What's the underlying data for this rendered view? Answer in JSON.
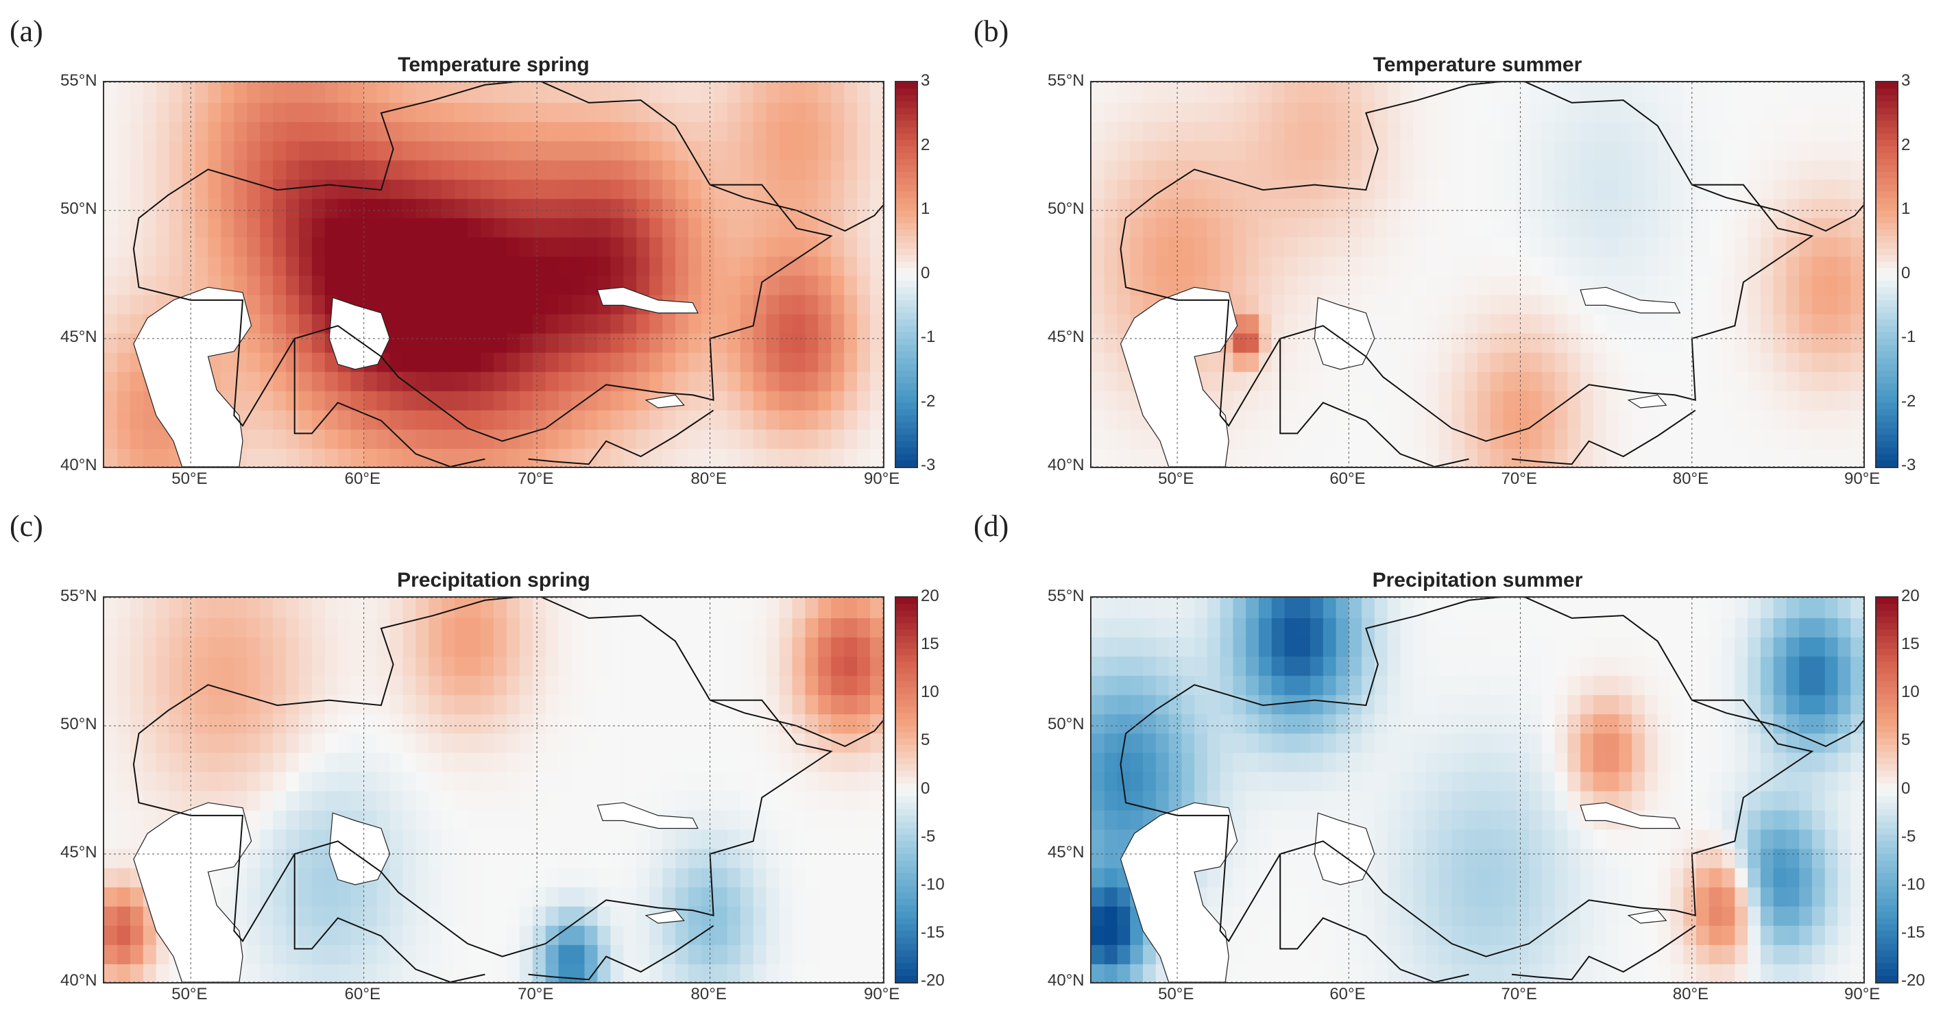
{
  "figure": {
    "colors": {
      "red_dark": "#8e0c1f",
      "red_mid": "#d6604d",
      "red_light": "#f4a582",
      "white": "#f7f7f7",
      "blue_light": "#92c5de",
      "blue_mid": "#4393c3",
      "blue_dark": "#084a91"
    }
  },
  "chart_data": [
    {
      "type": "heatmap",
      "panel_label": "(a)",
      "title": "Temperature spring",
      "variable": "temperature",
      "season": "spring",
      "x_ticks": [
        "50°E",
        "60°E",
        "70°E",
        "80°E",
        "90°E"
      ],
      "y_ticks": [
        "55°N",
        "50°N",
        "45°N",
        "40°N"
      ],
      "xlim": [
        45,
        90
      ],
      "ylim": [
        40,
        55
      ],
      "colorbar": {
        "min": -3,
        "max": 3,
        "ticks": [
          "3",
          "2",
          "1",
          "0",
          "-1",
          "-2",
          "-3"
        ]
      },
      "pattern": [
        {
          "lon": 67,
          "lat": 46.5,
          "value": 2.8,
          "spread": 9
        },
        {
          "lon": 60,
          "lat": 47,
          "value": 2.4,
          "spread": 8
        },
        {
          "lon": 75,
          "lat": 48,
          "value": 2.2,
          "spread": 7
        },
        {
          "lon": 55,
          "lat": 52,
          "value": 1.5,
          "spread": 8
        },
        {
          "lon": 85,
          "lat": 45,
          "value": 2.0,
          "spread": 5
        },
        {
          "lon": 48,
          "lat": 42,
          "value": 1.2,
          "spread": 6
        },
        {
          "lon": 85,
          "lat": 53,
          "value": 1.0,
          "spread": 6
        }
      ]
    },
    {
      "type": "heatmap",
      "panel_label": "(b)",
      "title": "Temperature summer",
      "variable": "temperature",
      "season": "summer",
      "x_ticks": [
        "50°E",
        "60°E",
        "70°E",
        "80°E",
        "90°E"
      ],
      "y_ticks": [
        "55°N",
        "50°N",
        "45°N",
        "40°N"
      ],
      "xlim": [
        45,
        90
      ],
      "ylim": [
        40,
        55
      ],
      "colorbar": {
        "min": -3,
        "max": 3,
        "ticks": [
          "3",
          "2",
          "1",
          "0",
          "-1",
          "-2",
          "-3"
        ]
      },
      "pattern": [
        {
          "lon": 50,
          "lat": 48,
          "value": 1.0,
          "spread": 7
        },
        {
          "lon": 70,
          "lat": 42,
          "value": 1.0,
          "spread": 5
        },
        {
          "lon": 54,
          "lat": 45,
          "value": 2.0,
          "spread": 1.2
        },
        {
          "lon": 75,
          "lat": 51,
          "value": -0.3,
          "spread": 6
        },
        {
          "lon": 88,
          "lat": 47,
          "value": 1.0,
          "spread": 5
        },
        {
          "lon": 58,
          "lat": 53,
          "value": 0.7,
          "spread": 6
        }
      ]
    },
    {
      "type": "heatmap",
      "panel_label": "(c)",
      "title": "Precipitation spring",
      "variable": "precipitation",
      "season": "spring",
      "x_ticks": [
        "50°E",
        "60°E",
        "70°E",
        "80°E",
        "90°E"
      ],
      "y_ticks": [
        "55°N",
        "50°N",
        "45°N",
        "40°N"
      ],
      "xlim": [
        45,
        90
      ],
      "ylim": [
        40,
        55
      ],
      "colorbar": {
        "min": -20,
        "max": 20,
        "ticks": [
          "20",
          "15",
          "10",
          "5",
          "0",
          "-5",
          "-10",
          "-15",
          "-20"
        ]
      },
      "pattern": [
        {
          "lon": 88,
          "lat": 52.5,
          "value": 14,
          "spread": 4
        },
        {
          "lon": 52,
          "lat": 52,
          "value": 6,
          "spread": 7
        },
        {
          "lon": 66,
          "lat": 53.5,
          "value": 7,
          "spread": 5
        },
        {
          "lon": 72,
          "lat": 40.8,
          "value": -15,
          "spread": 2.5
        },
        {
          "lon": 80,
          "lat": 42.5,
          "value": -7,
          "spread": 4
        },
        {
          "lon": 58,
          "lat": 44,
          "value": -5,
          "spread": 6
        },
        {
          "lon": 46,
          "lat": 42,
          "value": 13,
          "spread": 2.5
        }
      ]
    },
    {
      "type": "heatmap",
      "panel_label": "(d)",
      "title": "Precipitation summer",
      "variable": "precipitation",
      "season": "summer",
      "x_ticks": [
        "50°E",
        "60°E",
        "70°E",
        "80°E",
        "90°E"
      ],
      "y_ticks": [
        "55°N",
        "50°N",
        "45°N",
        "40°N"
      ],
      "xlim": [
        45,
        90
      ],
      "ylim": [
        40,
        55
      ],
      "colorbar": {
        "min": -20,
        "max": 20,
        "ticks": [
          "20",
          "15",
          "10",
          "5",
          "0",
          "-5",
          "-10",
          "-15",
          "-20"
        ]
      },
      "pattern": [
        {
          "lon": 57,
          "lat": 53.5,
          "value": -19,
          "spread": 5
        },
        {
          "lon": 47,
          "lat": 48,
          "value": -14,
          "spread": 6
        },
        {
          "lon": 46,
          "lat": 42,
          "value": -20,
          "spread": 3
        },
        {
          "lon": 87,
          "lat": 52,
          "value": -16,
          "spread": 4
        },
        {
          "lon": 75,
          "lat": 49,
          "value": 9,
          "spread": 3
        },
        {
          "lon": 82,
          "lat": 43,
          "value": 13,
          "spread": 3
        },
        {
          "lon": 85,
          "lat": 44,
          "value": -14,
          "spread": 4
        },
        {
          "lon": 68,
          "lat": 44,
          "value": -5,
          "spread": 7
        }
      ]
    }
  ]
}
